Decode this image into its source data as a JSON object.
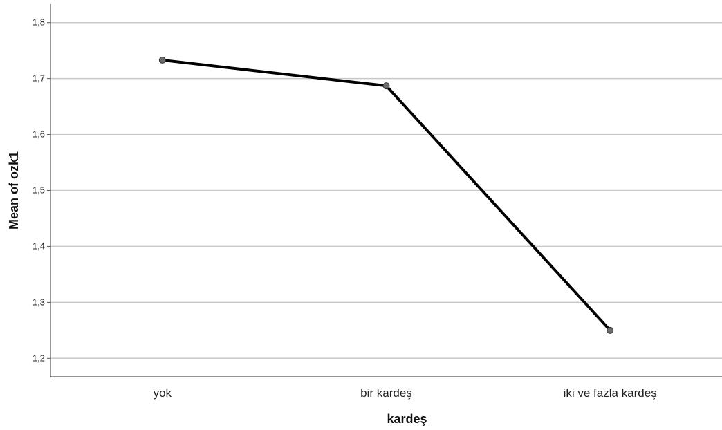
{
  "chart_data": {
    "type": "line",
    "categories": [
      "yok",
      "bir kardeş",
      "iki ve fazla kardeş"
    ],
    "series": [
      {
        "values": [
          1.733,
          1.687,
          1.25
        ]
      }
    ],
    "xlabel": "kardeş",
    "ylabel": "Mean of ozk1",
    "ylim": [
      1.167,
      1.833
    ],
    "yticks": [
      1.2,
      1.3,
      1.4,
      1.5,
      1.6,
      1.7,
      1.8
    ],
    "ytick_labels": [
      "1,2",
      "1,3",
      "1,4",
      "1,5",
      "1,6",
      "1,7",
      "1,8"
    ],
    "grid": true,
    "colors": {
      "line": "#000000",
      "marker": "#6b6b6b",
      "grid": "#c8c8c8",
      "axis": "#555555"
    }
  }
}
